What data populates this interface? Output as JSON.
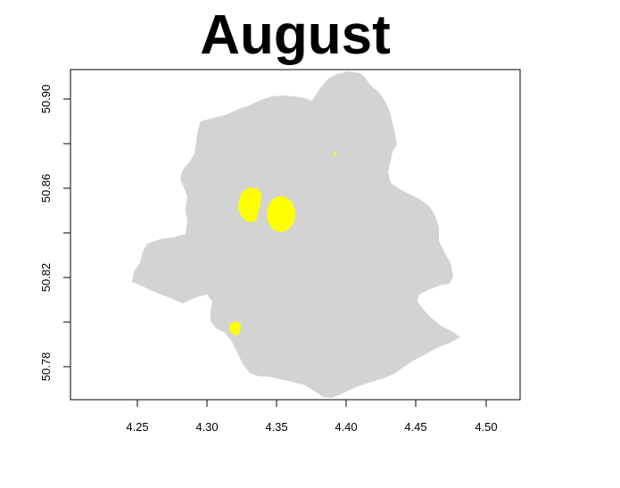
{
  "title": "August",
  "map": {
    "region_fill": "#d3d3d3",
    "hotspot_fill": "#ffff00",
    "x_ticks": [
      "4.25",
      "4.30",
      "4.35",
      "4.40",
      "4.45",
      "4.50"
    ],
    "y_ticks": [
      "50.78",
      "50.82",
      "50.86",
      "50.90"
    ],
    "x_range": [
      4.205,
      4.525
    ],
    "y_range": [
      50.765,
      50.913
    ]
  }
}
